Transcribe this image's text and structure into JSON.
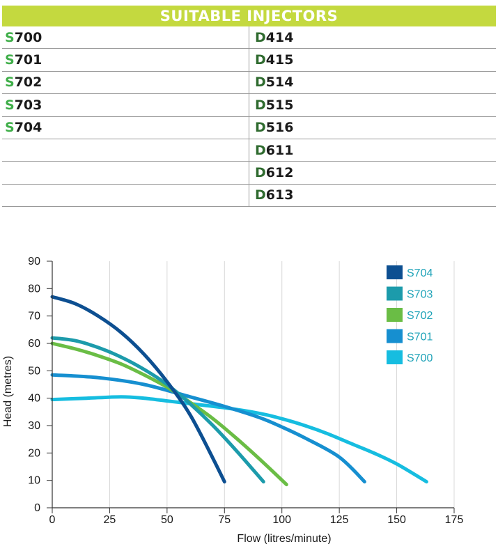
{
  "table": {
    "title": "SUITABLE INJECTORS",
    "rows": [
      {
        "s_prefix": "S",
        "s_rest": "700",
        "d_prefix": "D",
        "d_rest": "414"
      },
      {
        "s_prefix": "S",
        "s_rest": "701",
        "d_prefix": "D",
        "d_rest": "415"
      },
      {
        "s_prefix": "S",
        "s_rest": "702",
        "d_prefix": "D",
        "d_rest": "514"
      },
      {
        "s_prefix": "S",
        "s_rest": "703",
        "d_prefix": "D",
        "d_rest": "515"
      },
      {
        "s_prefix": "S",
        "s_rest": "704",
        "d_prefix": "D",
        "d_rest": "516"
      },
      {
        "s_prefix": "",
        "s_rest": "",
        "d_prefix": "D",
        "d_rest": "611"
      },
      {
        "s_prefix": "",
        "s_rest": "",
        "d_prefix": "D",
        "d_rest": "612"
      },
      {
        "s_prefix": "",
        "s_rest": "",
        "d_prefix": "D",
        "d_rest": "613"
      }
    ]
  },
  "colors": {
    "header_bg": "#c4d93f",
    "s_prefix": "#3fae49",
    "d_prefix": "#2f6b2f"
  },
  "chart_data": {
    "type": "line",
    "title": "",
    "xlabel": "Flow (litres/minute)",
    "ylabel": "Head (metres)",
    "xlim": [
      0,
      175
    ],
    "ylim": [
      0,
      90
    ],
    "xticks": [
      0,
      25,
      50,
      75,
      100,
      125,
      150,
      175
    ],
    "yticks": [
      0,
      10,
      20,
      30,
      40,
      50,
      60,
      70,
      80,
      90
    ],
    "grid": "vertical",
    "legend_position": "top-right",
    "series": [
      {
        "name": "S704",
        "color": "#0d4f91",
        "x": [
          0,
          10,
          20,
          30,
          40,
          50,
          60,
          70,
          75
        ],
        "y": [
          77,
          74.5,
          70,
          64,
          56,
          46,
          34,
          18,
          9.5
        ]
      },
      {
        "name": "S703",
        "color": "#1c9bab",
        "x": [
          0,
          10,
          20,
          30,
          40,
          50,
          60,
          70,
          80,
          92
        ],
        "y": [
          62,
          61,
          58.5,
          55,
          50.5,
          45,
          38,
          30,
          21,
          9.5
        ]
      },
      {
        "name": "S702",
        "color": "#6abd45",
        "x": [
          0,
          10,
          20,
          30,
          40,
          50,
          60,
          70,
          80,
          90,
          102
        ],
        "y": [
          60,
          58,
          55.5,
          52.5,
          48.5,
          44,
          38.5,
          32.5,
          25.5,
          18,
          8.5
        ]
      },
      {
        "name": "S701",
        "color": "#168fd0",
        "x": [
          0,
          20,
          40,
          60,
          75,
          90,
          100,
          110,
          125,
          136
        ],
        "y": [
          48.5,
          47.5,
          45,
          40.5,
          37,
          33,
          29.5,
          25.5,
          18.5,
          9.5
        ]
      },
      {
        "name": "S700",
        "color": "#16bde0",
        "x": [
          0,
          15,
          30,
          40,
          50,
          60,
          75,
          90,
          100,
          110,
          120,
          130,
          140,
          150,
          163
        ],
        "y": [
          39.5,
          40,
          40.5,
          40,
          39,
          38,
          36.5,
          34.5,
          32.5,
          30,
          27,
          23.5,
          20,
          16,
          9.5
        ]
      }
    ]
  }
}
